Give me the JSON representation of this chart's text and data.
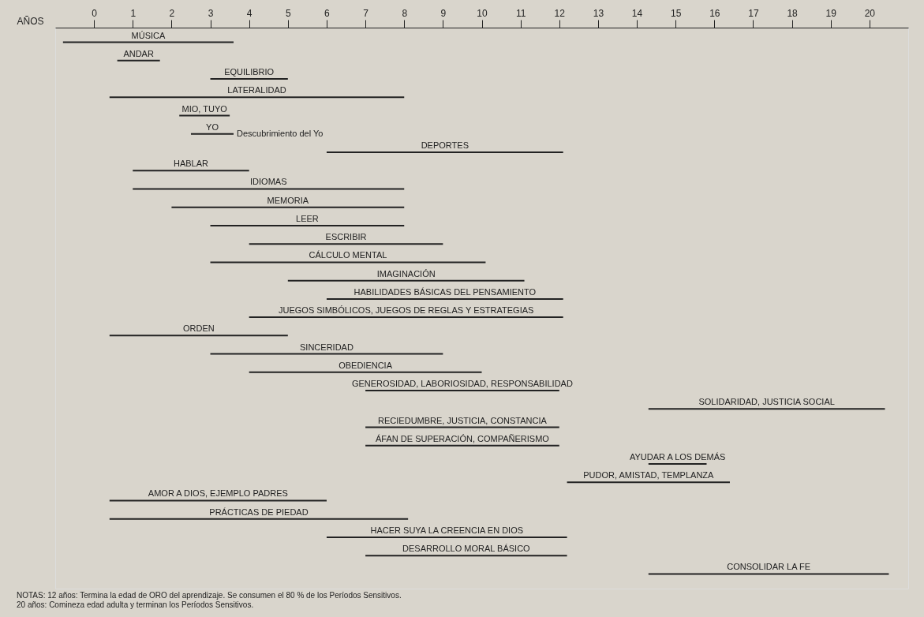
{
  "chart_data": {
    "type": "bar",
    "orientation": "horizontal",
    "xlabel": "AÑOS",
    "categories": [
      "MÚSICA",
      "ANDAR",
      "EQUILIBRIO",
      "LATERALIDAD",
      "MIO, TUYO",
      "YO",
      "DEPORTES",
      "HABLAR",
      "IDIOMAS",
      "MEMORIA",
      "LEER",
      "ESCRIBIR",
      "CÁLCULO MENTAL",
      "IMAGINACIÓN",
      "HABILIDADES BÁSICAS DEL PENSAMIENTO",
      "JUEGOS SIMBÓLICOS, JUEGOS DE REGLAS Y ESTRATEGIAS",
      "ORDEN",
      "SINCERIDAD",
      "OBEDIENCIA",
      "GENEROSIDAD, LABORIOSIDAD, RESPONSABILIDAD",
      "SOLIDARIDAD, JUSTICIA SOCIAL",
      "RECIEDUMBRE, JUSTICIA, CONSTANCIA",
      "ÁFAN DE SUPERACIÓN, COMPAÑERISMO",
      "AYUDAR A LOS DEMÁS",
      "PUDOR, AMISTAD, TEMPLANZA",
      "AMOR A DIOS, EJEMPLO PADRES",
      "PRÁCTICAS DE PIEDAD",
      "HACER SUYA LA CREENCIA EN DIOS",
      "DESARROLLO MORAL BÁSICO",
      "CONSOLIDAR LA FE"
    ],
    "base": [
      -0.8,
      0.6,
      3,
      0.4,
      2.2,
      2.5,
      6,
      1,
      1,
      2,
      3,
      4,
      3,
      5,
      6,
      4,
      0.4,
      3,
      4,
      7,
      14.3,
      7,
      7,
      14.3,
      12.2,
      0.4,
      0.4,
      6,
      7,
      14.3
    ],
    "values": [
      4.4,
      1.1,
      2,
      7.6,
      1.3,
      1.1,
      6.1,
      3,
      7,
      6,
      5,
      5,
      7.1,
      6.1,
      6.1,
      8.1,
      4.6,
      6,
      6,
      5,
      6.1,
      5,
      5,
      1.5,
      4.2,
      5.6,
      7.7,
      6.2,
      5.2,
      6.2
    ],
    "color": "#222222",
    "xlim": [
      -1,
      21
    ],
    "xticks": [
      0,
      1,
      2,
      3,
      4,
      5,
      6,
      7,
      8,
      9,
      10,
      11,
      12,
      13,
      14,
      15,
      16,
      17,
      18,
      19,
      20
    ],
    "grid": false,
    "annotations": [
      {
        "text": "Descubrimiento del Yo",
        "x": 3.6,
        "y": "YO"
      },
      "NOTAS: 12 años: Termina la edad de ORO del aprendizaje. Se consumen el 80 % de los Períodos Sensitivos.",
      "20 años: Comineza edad adulta y terminan los Períodos Sensitivos."
    ]
  }
}
